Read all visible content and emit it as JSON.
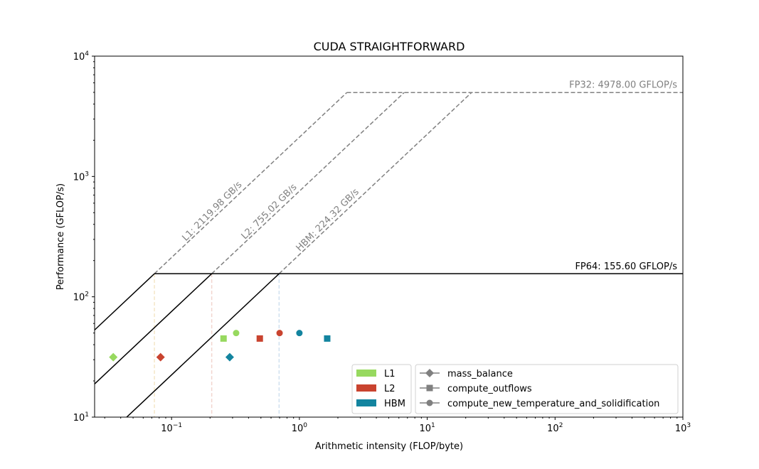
{
  "chart_data": {
    "type": "scatter",
    "title": "CUDA STRAIGHTFORWARD",
    "xlabel": "Arithmetic intensity (FLOP/byte)",
    "ylabel": "Performance (GFLOP/s)",
    "xscale": "log",
    "yscale": "log",
    "xlim": [
      0.025,
      1000
    ],
    "ylim": [
      10,
      10000
    ],
    "x_ticks": [
      {
        "value": 0.1,
        "base": "10",
        "exp": "−1"
      },
      {
        "value": 1,
        "base": "10",
        "exp": "0"
      },
      {
        "value": 10,
        "base": "10",
        "exp": "1"
      },
      {
        "value": 100,
        "base": "10",
        "exp": "2"
      },
      {
        "value": 1000,
        "base": "10",
        "exp": "3"
      }
    ],
    "y_ticks": [
      {
        "value": 10,
        "base": "10",
        "exp": "1"
      },
      {
        "value": 100,
        "base": "10",
        "exp": "2"
      },
      {
        "value": 1000,
        "base": "10",
        "exp": "3"
      },
      {
        "value": 10000,
        "base": "10",
        "exp": "4"
      }
    ],
    "grid": false,
    "ceilings": {
      "compute": [
        {
          "label": "FP32: 4978.00 GFLOP/s",
          "value": 4978.0,
          "color": "#808080",
          "style": "dashed"
        },
        {
          "label": "FP64: 155.60 GFLOP/s",
          "value": 155.6,
          "color": "#000000",
          "style": "solid"
        }
      ],
      "bandwidth": [
        {
          "name": "L1",
          "label": "L1: 2119.98 GB/s",
          "value": 2119.98,
          "knee_color": "#f4e6c8"
        },
        {
          "name": "L2",
          "label": "L2: 755.02 GB/s",
          "value": 755.02,
          "knee_color": "#f1d5cf"
        },
        {
          "name": "HBM",
          "label": "HBM: 224.32 GB/s",
          "value": 224.32,
          "knee_color": "#cfe0ef"
        }
      ]
    },
    "memory_levels": [
      {
        "name": "L1",
        "color": "#97d95f"
      },
      {
        "name": "L2",
        "color": "#c9432f"
      },
      {
        "name": "HBM",
        "color": "#13849f"
      }
    ],
    "kernels": [
      {
        "name": "mass_balance",
        "marker": "diamond"
      },
      {
        "name": "compute_outflows",
        "marker": "square"
      },
      {
        "name": "compute_new_temperature_and_solidification",
        "marker": "circle"
      }
    ],
    "points": [
      {
        "kernel": "mass_balance",
        "level": "L1",
        "x": 0.035,
        "y": 31.5
      },
      {
        "kernel": "mass_balance",
        "level": "L2",
        "x": 0.082,
        "y": 31.5
      },
      {
        "kernel": "mass_balance",
        "level": "HBM",
        "x": 0.285,
        "y": 31.5
      },
      {
        "kernel": "compute_outflows",
        "level": "L1",
        "x": 0.255,
        "y": 45
      },
      {
        "kernel": "compute_outflows",
        "level": "L2",
        "x": 0.49,
        "y": 45
      },
      {
        "kernel": "compute_outflows",
        "level": "HBM",
        "x": 1.65,
        "y": 45
      },
      {
        "kernel": "compute_new_temperature_and_solidification",
        "level": "L1",
        "x": 0.32,
        "y": 50
      },
      {
        "kernel": "compute_new_temperature_and_solidification",
        "level": "L2",
        "x": 0.7,
        "y": 50
      },
      {
        "kernel": "compute_new_temperature_and_solidification",
        "level": "HBM",
        "x": 1.0,
        "y": 50
      }
    ],
    "legend_placement": "lower-right"
  }
}
